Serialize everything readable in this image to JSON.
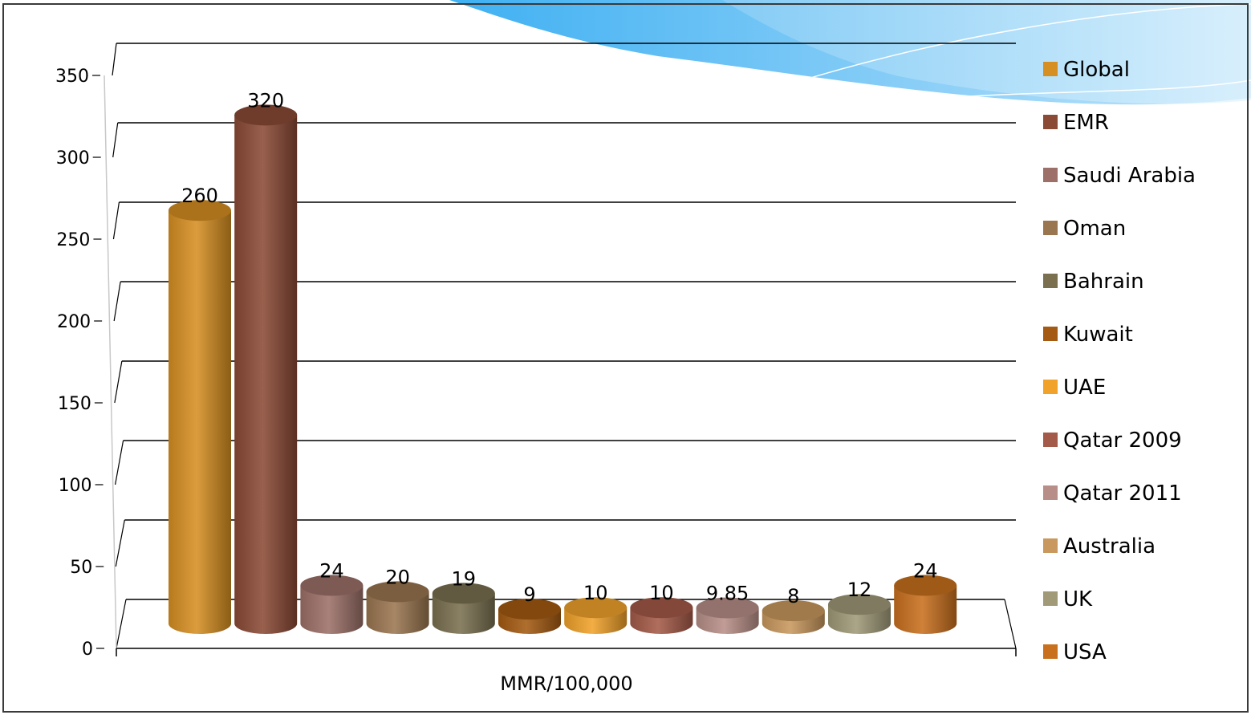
{
  "chart_data": {
    "type": "bar",
    "title": "",
    "xlabel": "MMR/100,000",
    "ylabel": "",
    "ylim": [
      0,
      350
    ],
    "yticks": [
      0,
      50,
      100,
      150,
      200,
      250,
      300,
      350
    ],
    "grid": true,
    "legend_position": "right",
    "series": [
      {
        "name": "Global",
        "value": 260,
        "label": "260",
        "color": "#d68f22"
      },
      {
        "name": "EMR",
        "value": 320,
        "label": "320",
        "color": "#8b4a36"
      },
      {
        "name": "Saudi Arabia",
        "value": 24,
        "label": "24",
        "color": "#9c7068"
      },
      {
        "name": "Oman",
        "value": 20,
        "label": "20",
        "color": "#9a7650"
      },
      {
        "name": "Bahrain",
        "value": 19,
        "label": "19",
        "color": "#7a7050"
      },
      {
        "name": "Kuwait",
        "value": 9,
        "label": "9",
        "color": "#a45a12"
      },
      {
        "name": "UAE",
        "value": 10,
        "label": "10",
        "color": "#f0a22a"
      },
      {
        "name": "Qatar 2009",
        "value": 10,
        "label": "10",
        "color": "#a45a48"
      },
      {
        "name": "Qatar 2011",
        "value": 9.85,
        "label": "9.85",
        "color": "#b88f88"
      },
      {
        "name": "Australia",
        "value": 8,
        "label": "8",
        "color": "#c8985e"
      },
      {
        "name": "UK",
        "value": 12,
        "label": "12",
        "color": "#a09a78"
      },
      {
        "name": "USA",
        "value": 24,
        "label": "24",
        "color": "#c8701e"
      }
    ]
  }
}
